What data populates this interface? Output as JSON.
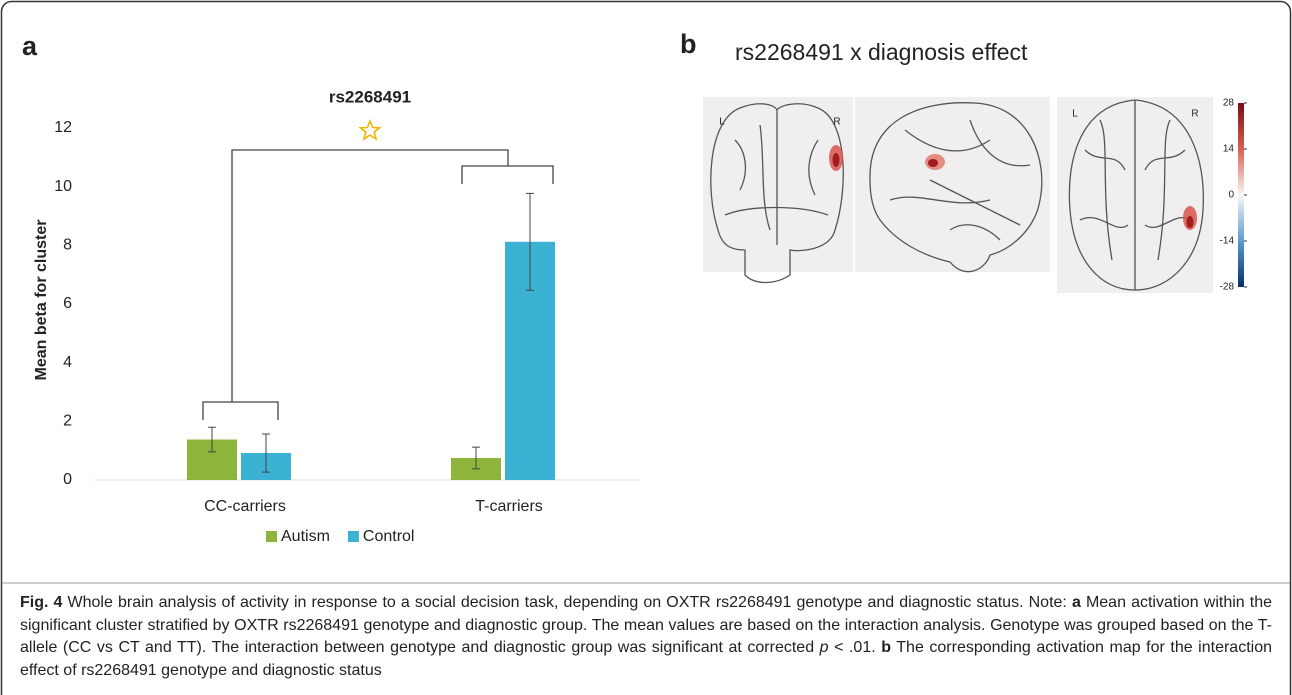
{
  "chart_data": {
    "type": "bar",
    "title": "rs2268491",
    "panel_label": "a",
    "y_label": "Mean beta for cluster",
    "categories": [
      "CC-carriers",
      "T-carriers"
    ],
    "series": [
      {
        "name": "Autism",
        "color": "#8db53c",
        "values": [
          1.38,
          0.75
        ],
        "errors": [
          0.42,
          0.37
        ]
      },
      {
        "name": "Control",
        "color": "#3bb1d4",
        "values": [
          0.92,
          8.12
        ],
        "errors": [
          0.65,
          1.65
        ]
      }
    ],
    "ylim": [
      0,
      12
    ],
    "yticks": [
      0,
      2,
      4,
      6,
      8,
      10,
      12
    ],
    "legend": "bottom"
  },
  "panel_b": {
    "panel_label": "b",
    "title": "rs2268491 x diagnosis effect",
    "brain_labels": {
      "coronal_left": "L",
      "coronal_right": "R",
      "axial_left": "L",
      "axial_right": "R"
    },
    "colorbar": {
      "lim": [
        -28,
        28
      ],
      "ticks": [
        28,
        14,
        0,
        -14,
        -28
      ]
    }
  },
  "caption": [
    {
      "text": "Fig. 4",
      "style": "bold"
    },
    {
      "text": " Whole brain analysis of activity in response to a social decision task, depending on OXTR rs2268491 genotype and diagnostic status. Note: "
    },
    {
      "text": "a",
      "style": "bold"
    },
    {
      "text": " Mean activation within the significant cluster stratified by OXTR rs2268491 genotype and diagnostic group. The mean values are based on the interaction analysis. Genotype was grouped based on the T-allele (CC vs CT and TT). The interaction between genotype and diagnostic group was significant at corrected "
    },
    {
      "text": "p",
      "style": "italic"
    },
    {
      "text": " < .01. "
    },
    {
      "text": "b",
      "style": "bold"
    },
    {
      "text": " The corresponding activation map for the interaction effect of rs2268491 genotype and diagnostic status"
    }
  ]
}
